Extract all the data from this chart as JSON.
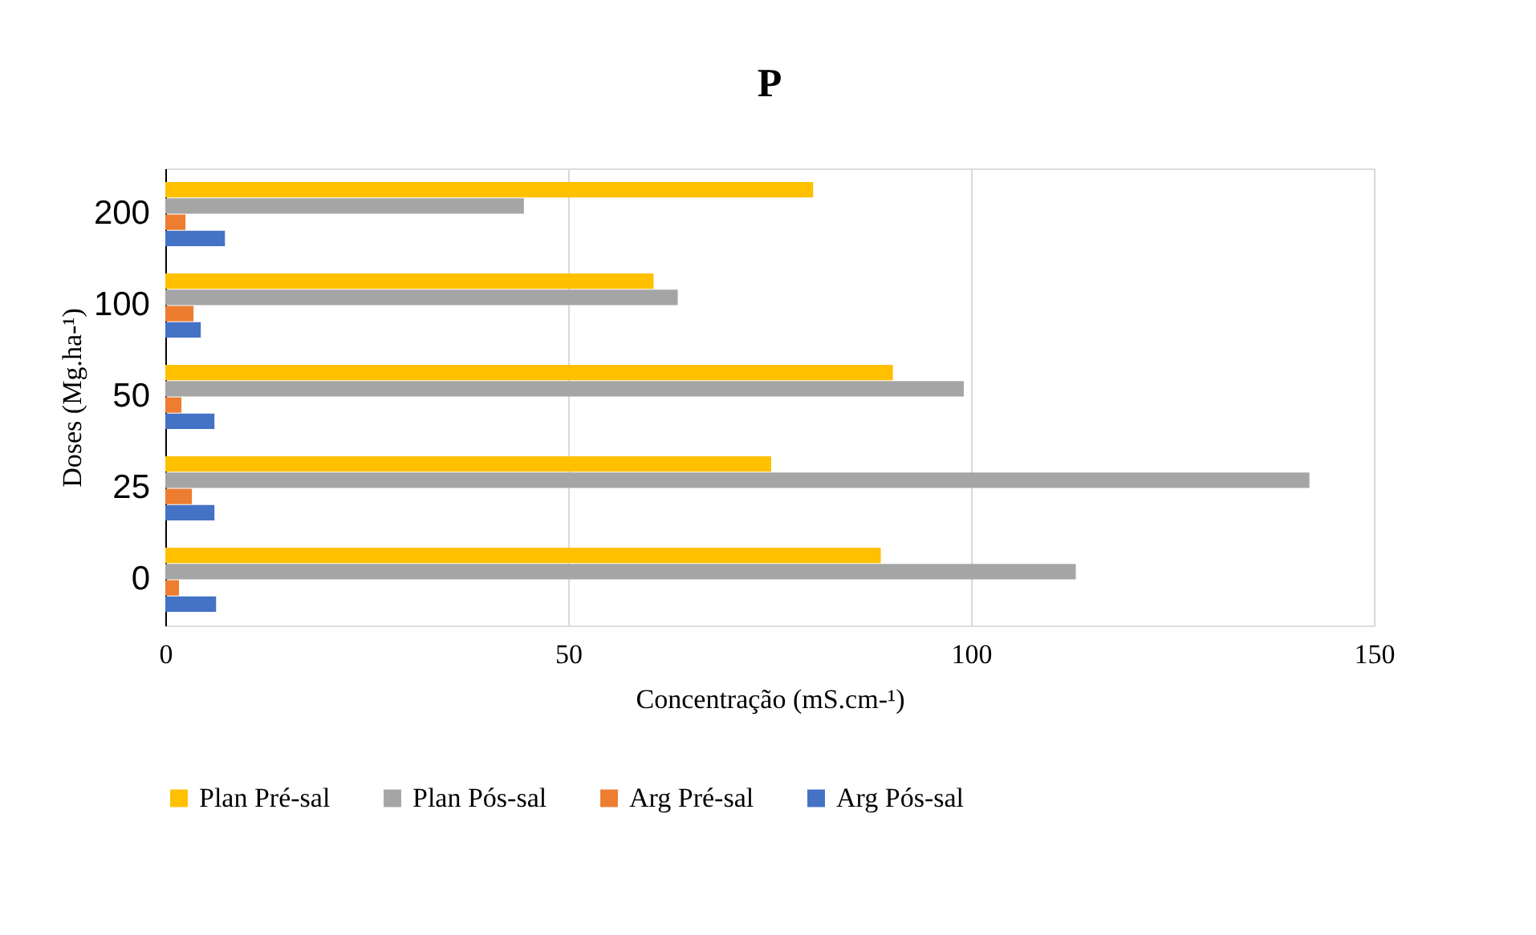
{
  "chart_data": {
    "type": "bar",
    "orientation": "horizontal",
    "title": "P",
    "xlabel": "Concentração (mS.cm-¹)",
    "ylabel": "Doses (Mg.ha-¹)",
    "categories": [
      "200",
      "100",
      "50",
      "25",
      "0"
    ],
    "series": [
      {
        "name": "Plan Pré-sal",
        "color": "#ffc000",
        "values": [
          80.4,
          60.6,
          90.3,
          75.2,
          88.8
        ]
      },
      {
        "name": "Plan Pós-sal",
        "color": "#a5a5a5",
        "values": [
          44.5,
          63.6,
          99.1,
          142,
          113
        ]
      },
      {
        "name": "Arg Pré-sal",
        "color": "#ed7d31",
        "values": [
          2.5,
          3.5,
          2.0,
          3.3,
          1.7
        ]
      },
      {
        "name": "Arg Pós-sal",
        "color": "#4472c4",
        "values": [
          7.4,
          4.4,
          6.1,
          6.1,
          6.3
        ]
      }
    ],
    "xlim": [
      0,
      150
    ],
    "xticks": [
      0,
      50,
      100,
      150
    ],
    "grid": "x",
    "legend": "bottom"
  }
}
